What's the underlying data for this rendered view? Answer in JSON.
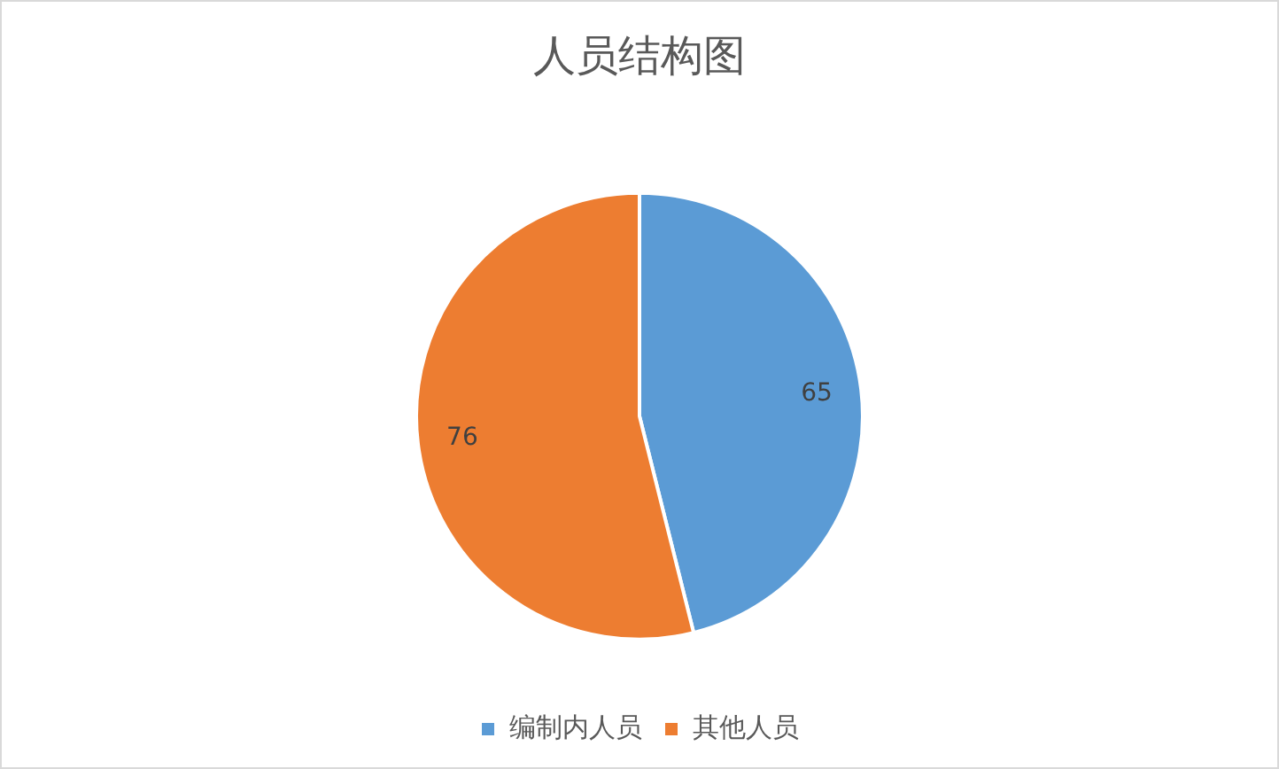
{
  "chart_data": {
    "type": "pie",
    "title": "人员结构图",
    "categories": [
      "编制内人员",
      "其他人员"
    ],
    "values": [
      65,
      76
    ],
    "colors": [
      "#5b9bd5",
      "#ed7d31"
    ],
    "data_labels": true,
    "legend": "bottom"
  }
}
